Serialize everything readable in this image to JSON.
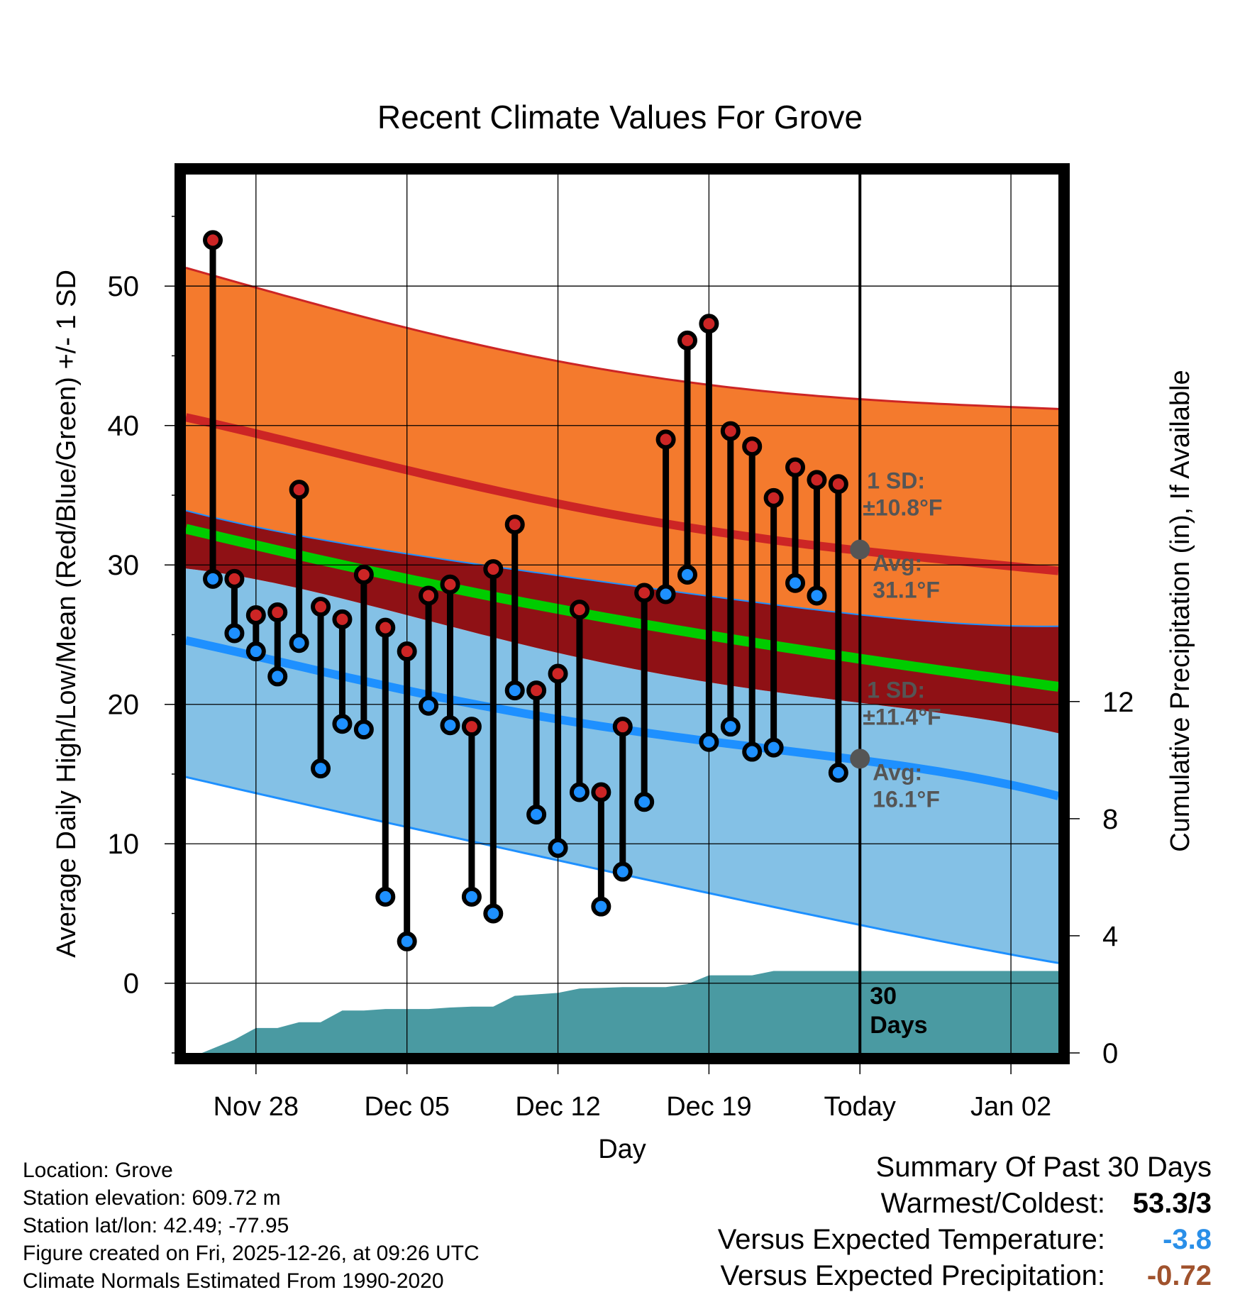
{
  "chart_data": {
    "type": "line",
    "title": "Recent Climate Values For Grove",
    "xlabel": "Day",
    "ylabel": "Average Daily High/Low/Mean (Red/Blue/Green) +/- 1 SD",
    "y2label": "Cumulative Precipitation (in), If Available",
    "x_ticks": [
      {
        "day": 3,
        "label": "Nov 28"
      },
      {
        "day": 10,
        "label": "Dec 05"
      },
      {
        "day": 17,
        "label": "Dec 12"
      },
      {
        "day": 24,
        "label": "Dec 19"
      },
      {
        "day": 31,
        "label": "Today"
      },
      {
        "day": 38,
        "label": "Jan 02"
      }
    ],
    "xlim": [
      -0.25,
      40.2
    ],
    "ylim": [
      -5,
      58
    ],
    "y_ticks": [
      0,
      10,
      20,
      30,
      40,
      50
    ],
    "y2lim": [
      0,
      30
    ],
    "y2_ticks": [
      0,
      4,
      8,
      12
    ],
    "today_day": 31,
    "today_note": "30 Days",
    "normals": {
      "days": [
        0,
        10,
        20,
        30,
        40
      ],
      "high_mean": [
        40.5,
        36.8,
        33.5,
        31.2,
        29.6
      ],
      "high_upper": [
        51.2,
        47.0,
        43.8,
        42.0,
        41.2
      ],
      "high_lower": [
        33.8,
        30.8,
        28.6,
        26.6,
        25.6
      ],
      "mean": [
        32.5,
        29.0,
        26.0,
        23.5,
        21.3
      ],
      "low_mean": [
        24.5,
        21.0,
        18.2,
        16.2,
        13.5
      ],
      "low_upper": [
        29.7,
        26.4,
        22.7,
        20.3,
        18.0
      ],
      "low_lower": [
        14.7,
        11.2,
        7.8,
        4.5,
        1.5
      ]
    },
    "daily": {
      "days": [
        1,
        2,
        3,
        4,
        5,
        6,
        7,
        8,
        9,
        10,
        11,
        12,
        13,
        14,
        15,
        16,
        17,
        18,
        19,
        20,
        21,
        22,
        23,
        24,
        25,
        26,
        27,
        28,
        29,
        30
      ],
      "high": [
        53.3,
        29.0,
        26.4,
        26.6,
        35.4,
        27.0,
        26.1,
        29.3,
        25.5,
        23.8,
        27.8,
        28.6,
        18.4,
        29.7,
        32.9,
        21.0,
        22.2,
        26.8,
        13.7,
        18.4,
        28.0,
        39.0,
        46.1,
        47.3,
        39.6,
        38.5,
        34.8,
        37.0,
        36.1,
        35.8
      ],
      "low": [
        29.0,
        25.1,
        23.8,
        22.0,
        24.4,
        15.4,
        18.6,
        18.2,
        6.2,
        3.0,
        19.9,
        18.5,
        6.2,
        5.0,
        21.0,
        12.1,
        9.7,
        13.7,
        5.5,
        8.0,
        13.0,
        27.9,
        29.3,
        17.3,
        18.4,
        16.6,
        16.9,
        28.7,
        27.8,
        15.1
      ]
    },
    "precip": {
      "days": [
        0.5,
        2,
        3,
        4,
        5,
        6,
        7,
        8,
        9,
        10,
        11,
        12,
        13,
        14,
        15,
        16,
        17,
        18,
        19,
        20,
        21,
        22,
        23,
        24,
        25,
        26,
        27,
        28,
        29,
        30,
        31,
        40.2
      ],
      "cumulative": [
        0.0,
        0.45,
        0.85,
        0.85,
        1.05,
        1.05,
        1.45,
        1.45,
        1.5,
        1.5,
        1.5,
        1.55,
        1.58,
        1.58,
        1.95,
        2.0,
        2.05,
        2.2,
        2.22,
        2.25,
        2.25,
        2.25,
        2.35,
        2.65,
        2.65,
        2.65,
        2.8,
        2.8,
        2.8,
        2.8,
        2.8,
        2.8
      ]
    },
    "annotations": {
      "high_sd_label": "1 SD:",
      "high_sd_value": "±10.8°F",
      "high_avg_label": "Avg:",
      "high_avg_value": "31.1°F",
      "high_avg": 31.1,
      "low_sd_label": "1 SD:",
      "low_sd_value": "±11.4°F",
      "low_avg_label": "Avg:",
      "low_avg_value": "16.1°F",
      "low_avg": 16.1
    },
    "colors": {
      "high_band": "#f47a2d",
      "high_line": "#cc2525",
      "mid_band": "#8f1115",
      "mean_line": "#00cc00",
      "low_band": "#84c1e6",
      "low_line": "#1e90ff",
      "precip": "#4a9aa2",
      "high_marker": "#cc2525",
      "low_marker": "#1e90ff",
      "annot": "#555555"
    }
  },
  "info": {
    "location": "Location: Grove",
    "elevation": "Station elevation: 609.72 m",
    "latlon": "Station lat/lon: 42.49; -77.95",
    "created": "Figure created on Fri, 2025-12-26, at 09:26 UTC",
    "normals": "Climate Normals Estimated From 1990-2020"
  },
  "summary": {
    "title": "Summary Of Past 30 Days",
    "warm_cold_label": "Warmest/Coldest:",
    "warm_cold_value": "53.3/3",
    "temp_label": "Versus Expected Temperature:",
    "temp_value": "-3.8",
    "temp_color": "#2a8fe8",
    "precip_label": "Versus Expected Precipitation:",
    "precip_value": "-0.72",
    "precip_color": "#a0522d"
  }
}
